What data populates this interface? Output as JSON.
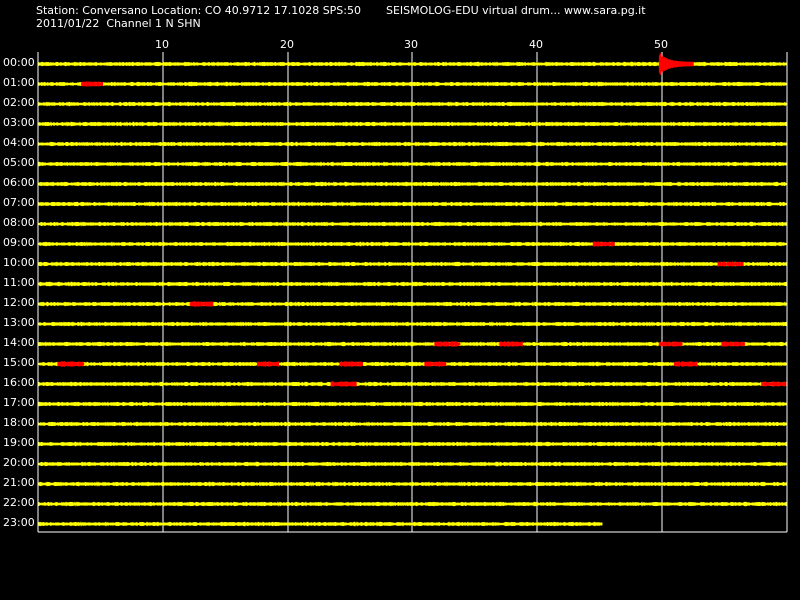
{
  "header": {
    "station_line": "Station: Conversano Location: CO 40.9712 17.1028 SPS:50",
    "site_line": "SEISMOLOG-EDU virtual drum... www.sara.pg.it",
    "date_line": "2011/01/22  Channel 1 N SHN"
  },
  "axis": {
    "minute_ticks": [
      "10",
      "20",
      "30",
      "40",
      "50"
    ]
  },
  "hours": [
    "00:00",
    "01:00",
    "02:00",
    "03:00",
    "04:00",
    "05:00",
    "06:00",
    "07:00",
    "08:00",
    "09:00",
    "10:00",
    "11:00",
    "12:00",
    "13:00",
    "14:00",
    "15:00",
    "16:00",
    "17:00",
    "18:00",
    "19:00",
    "20:00",
    "21:00",
    "22:00",
    "23:00"
  ],
  "colors": {
    "background": "#000000",
    "trace": "#ffff00",
    "event": "#ff0000",
    "grid": "#ffffff",
    "text": "#ffffff"
  },
  "events": [
    {
      "hour": 0,
      "start_min": 49.8,
      "end_min": 52.5,
      "type": "quake"
    },
    {
      "hour": 1,
      "start_min": 3.5,
      "end_min": 5.2
    },
    {
      "hour": 9,
      "start_min": 44.5,
      "end_min": 46.2
    },
    {
      "hour": 10,
      "start_min": 54.5,
      "end_min": 56.5
    },
    {
      "hour": 12,
      "start_min": 12.2,
      "end_min": 14.0
    },
    {
      "hour": 14,
      "start_min": 31.8,
      "end_min": 33.8
    },
    {
      "hour": 14,
      "start_min": 37.0,
      "end_min": 38.8
    },
    {
      "hour": 14,
      "start_min": 49.8,
      "end_min": 51.6
    },
    {
      "hour": 14,
      "start_min": 54.8,
      "end_min": 56.6
    },
    {
      "hour": 15,
      "start_min": 1.6,
      "end_min": 3.7
    },
    {
      "hour": 15,
      "start_min": 17.6,
      "end_min": 19.3
    },
    {
      "hour": 15,
      "start_min": 24.2,
      "end_min": 26.0
    },
    {
      "hour": 15,
      "start_min": 31.0,
      "end_min": 32.7
    },
    {
      "hour": 15,
      "start_min": 51.0,
      "end_min": 52.8
    },
    {
      "hour": 16,
      "start_min": 23.5,
      "end_min": 25.5
    },
    {
      "hour": 16,
      "start_min": 58.0,
      "end_min": 60.0
    }
  ],
  "last_hour_end_min": 45.2
}
